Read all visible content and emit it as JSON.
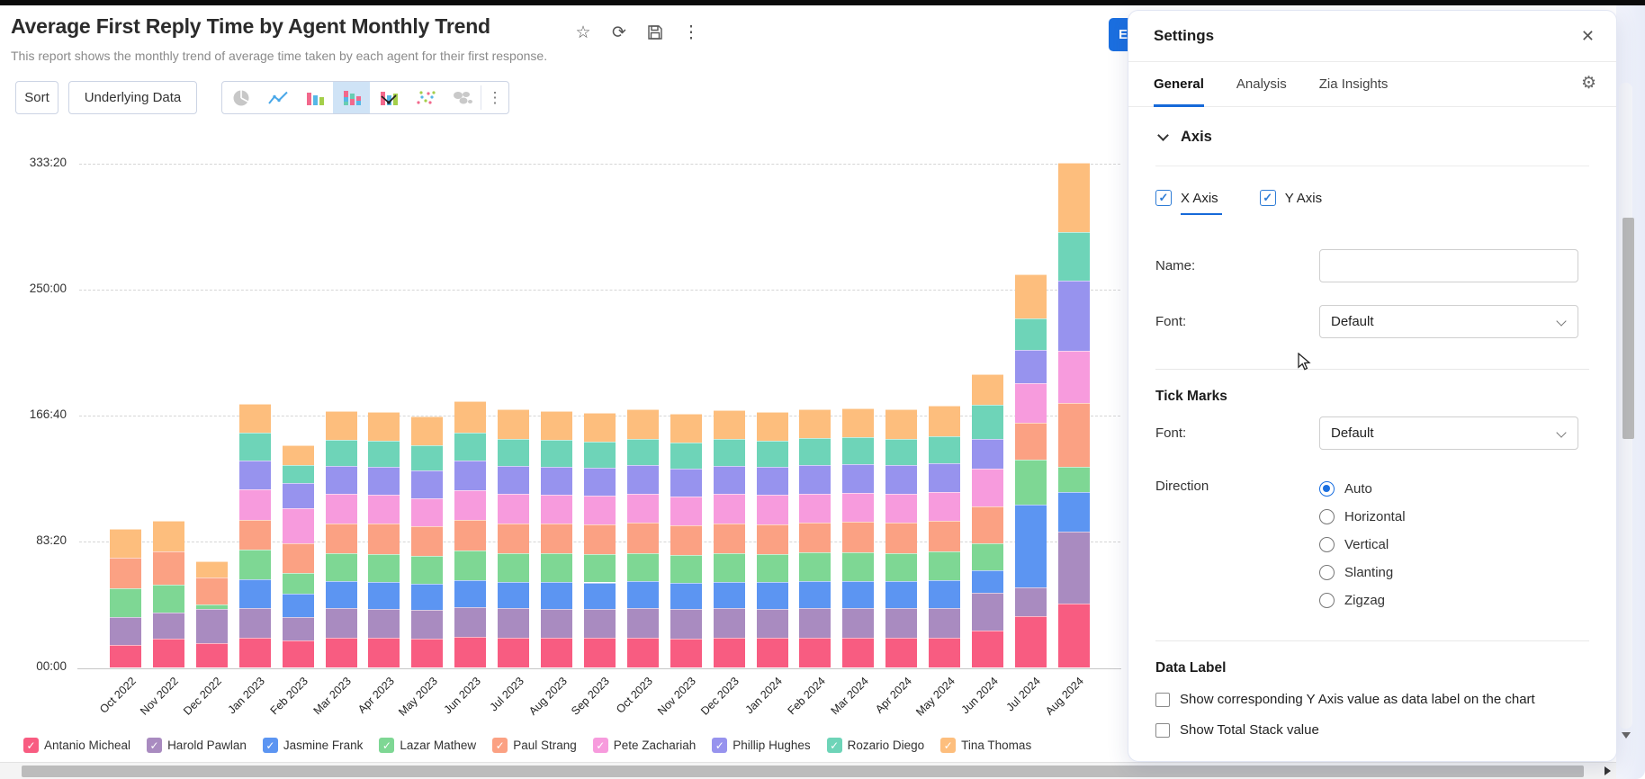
{
  "header": {
    "title": "Average First Reply Time by Agent Monthly Trend",
    "subtitle": "This report shows the monthly trend of average time taken by each agent for their first response.",
    "icons": [
      "star-icon",
      "refresh-icon",
      "save-icon",
      "more-vertical-icon"
    ]
  },
  "toolbar": {
    "sort_label": "Sort",
    "underlying_data_label": "Underlying Data",
    "chart_types": [
      {
        "name": "pie-chart-icon",
        "selected": false
      },
      {
        "name": "line-chart-icon",
        "selected": false
      },
      {
        "name": "bar-chart-icon",
        "selected": false
      },
      {
        "name": "stacked-bar-chart-icon",
        "selected": true
      },
      {
        "name": "combo-chart-icon",
        "selected": false
      },
      {
        "name": "scatter-chart-icon",
        "selected": false
      },
      {
        "name": "map-chart-icon",
        "selected": false
      }
    ]
  },
  "edit_button": {
    "visible_label": "E",
    "color": "#1b6fe0"
  },
  "chart_data": {
    "type": "bar",
    "stacked": true,
    "title": "Average First Reply Time by Agent Monthly Trend",
    "xlabel": "",
    "ylabel": "",
    "grid": "dashed-horizontal",
    "legend_position": "bottom",
    "y_axis": {
      "tick_format": "HHH:MM (time)",
      "ticks": [
        {
          "label": "00:00",
          "value": 0
        },
        {
          "label": "83:20",
          "value": 5000
        },
        {
          "label": "166:40",
          "value": 10000
        },
        {
          "label": "250:00",
          "value": 15000
        },
        {
          "label": "333:20",
          "value": 20000
        }
      ],
      "max_value": 20800
    },
    "categories": [
      "Oct 2022",
      "Nov 2022",
      "Dec 2022",
      "Jan 2023",
      "Feb 2023",
      "Mar 2023",
      "Apr 2023",
      "May 2023",
      "Jun 2023",
      "Jul 2023",
      "Aug 2023",
      "Sep 2023",
      "Oct 2023",
      "Nov 2023",
      "Dec 2023",
      "Jan 2024",
      "Feb 2024",
      "Mar 2024",
      "Apr 2024",
      "May 2024",
      "Jun 2024",
      "Jul 2024",
      "Aug 2024"
    ],
    "series": [
      {
        "name": "Antanio Micheal",
        "color": "#F85C81",
        "values": [
          880,
          1160,
          950,
          1190,
          1060,
          1180,
          1170,
          1150,
          1200,
          1180,
          1175,
          1165,
          1180,
          1160,
          1180,
          1170,
          1185,
          1190,
          1180,
          1195,
          1479,
          2042,
          2535
        ]
      },
      {
        "name": "Harold Pawlan",
        "color": "#A98BC0",
        "values": [
          1130,
          1010,
          1360,
          1180,
          950,
          1160,
          1150,
          1130,
          1180,
          1160,
          1155,
          1150,
          1165,
          1145,
          1160,
          1155,
          1165,
          1170,
          1165,
          1175,
          1479,
          1127,
          2845
        ]
      },
      {
        "name": "Jasmine Frank",
        "color": "#5C95F2",
        "values": [
          0,
          0,
          0,
          1140,
          930,
          1080,
          1060,
          1050,
          1100,
          1070,
          1065,
          1060,
          1070,
          1050,
          1070,
          1060,
          1075,
          1080,
          1070,
          1085,
          915,
          3310,
          1592
        ]
      },
      {
        "name": "Lazar Mathew",
        "color": "#7ED794",
        "values": [
          1130,
          1100,
          180,
          1160,
          820,
          1110,
          1120,
          1100,
          1160,
          1130,
          1125,
          1120,
          1135,
          1110,
          1130,
          1125,
          1135,
          1140,
          1135,
          1145,
          1056,
          1761,
          986
        ]
      },
      {
        "name": "Paul Strang",
        "color": "#FBA183",
        "values": [
          1215,
          1330,
          1090,
          1180,
          1180,
          1190,
          1200,
          1170,
          1220,
          1190,
          1185,
          1180,
          1195,
          1175,
          1190,
          1185,
          1195,
          1200,
          1195,
          1205,
          1479,
          1479,
          2535
        ]
      },
      {
        "name": "Pete Zachariah",
        "color": "#F79BDD",
        "values": [
          0,
          0,
          0,
          1210,
          1390,
          1160,
          1150,
          1120,
          1180,
          1150,
          1145,
          1140,
          1155,
          1130,
          1150,
          1145,
          1155,
          1160,
          1155,
          1165,
          1479,
          1549,
          2085
        ]
      },
      {
        "name": "Phillip Hughes",
        "color": "#9793EE",
        "values": [
          0,
          0,
          0,
          1150,
          1000,
          1130,
          1120,
          1100,
          1160,
          1130,
          1125,
          1120,
          1130,
          1110,
          1130,
          1120,
          1135,
          1135,
          1130,
          1145,
          1197,
          1338,
          2775
        ]
      },
      {
        "name": "Rozario Diego",
        "color": "#6ED4B8",
        "values": [
          0,
          0,
          0,
          1120,
          710,
          1040,
          1030,
          1010,
          1120,
          1060,
          1050,
          1040,
          1055,
          1035,
          1055,
          1045,
          1060,
          1065,
          1055,
          1070,
          1338,
          1268,
          1944
        ]
      },
      {
        "name": "Tina Thomas",
        "color": "#FDBE7D",
        "values": [
          1145,
          1220,
          630,
          1150,
          780,
          1140,
          1150,
          1120,
          1240,
          1170,
          1155,
          1145,
          1155,
          1145,
          1155,
          1145,
          1155,
          1160,
          1155,
          1195,
          1238,
          1716,
          2733
        ]
      }
    ]
  },
  "settings": {
    "title": "Settings",
    "close_icon": "close-icon",
    "gear_icon": "gear-icon",
    "tabs": [
      {
        "label": "General",
        "active": true
      },
      {
        "label": "Analysis",
        "active": false
      },
      {
        "label": "Zia Insights",
        "active": false
      }
    ],
    "axis_section": {
      "heading": "Axis",
      "axis_tabs": [
        {
          "label": "X Axis",
          "checked": true,
          "active": true
        },
        {
          "label": "Y Axis",
          "checked": true,
          "active": false
        }
      ],
      "name_label": "Name:",
      "name_value": "",
      "font_label": "Font:",
      "font_value": "Default",
      "tick_marks": {
        "heading": "Tick Marks",
        "font_label": "Font:",
        "font_value": "Default"
      },
      "direction": {
        "label": "Direction",
        "options": [
          {
            "label": "Auto",
            "selected": true
          },
          {
            "label": "Horizontal",
            "selected": false
          },
          {
            "label": "Vertical",
            "selected": false
          },
          {
            "label": "Slanting",
            "selected": false
          },
          {
            "label": "Zigzag",
            "selected": false
          }
        ]
      },
      "data_label": {
        "heading": "Data Label",
        "options": [
          {
            "label": "Show corresponding Y Axis value as data label on the chart",
            "checked": false
          },
          {
            "label": "Show Total Stack value",
            "checked": false
          }
        ]
      }
    }
  },
  "colors": {
    "accent_blue": "#1a6fe0",
    "selected_icon_bg": "#cfe3f6"
  }
}
